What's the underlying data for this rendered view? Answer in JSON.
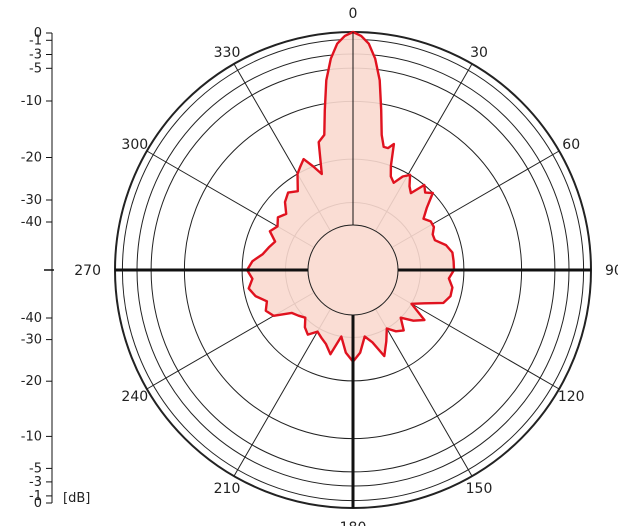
{
  "colors": {
    "pattern_line": "#e0121f",
    "pattern_fill": "#f9d9cf",
    "grid": "#222222",
    "axes": "#111111",
    "text": "#222222"
  },
  "chart_data": {
    "type": "polar",
    "title": "",
    "radial_unit": "[dB]",
    "radial_scale_labels_top": [
      "0",
      "-1",
      "-3",
      "-5",
      "-10",
      "-20",
      "-30",
      "-40"
    ],
    "radial_scale_labels_bottom": [
      "-40",
      "-30",
      "-20",
      "-10",
      "-5",
      "-3",
      "-1",
      "0"
    ],
    "angle_labels": [
      {
        "deg": 0,
        "text": "0"
      },
      {
        "deg": 30,
        "text": "30"
      },
      {
        "deg": 60,
        "text": "60"
      },
      {
        "deg": 90,
        "text": "90"
      },
      {
        "deg": 120,
        "text": "120"
      },
      {
        "deg": 150,
        "text": "150"
      },
      {
        "deg": 180,
        "text": "180"
      },
      {
        "deg": 210,
        "text": "210"
      },
      {
        "deg": 240,
        "text": "240"
      },
      {
        "deg": 270,
        "text": "270"
      },
      {
        "deg": 300,
        "text": "300"
      },
      {
        "deg": 330,
        "text": "330"
      }
    ],
    "ring_levels_db": [
      0,
      -1,
      -3,
      -5,
      -10,
      -20,
      -30,
      -40
    ],
    "grid": true,
    "series": [
      {
        "angles_deg": [
          0,
          2,
          4,
          6,
          8,
          10,
          12,
          14,
          16,
          18,
          20,
          22,
          25,
          28,
          31,
          34,
          37,
          40,
          43,
          46,
          50,
          54,
          58,
          62,
          66,
          70,
          75,
          80,
          85,
          90,
          95,
          100,
          105,
          110,
          115,
          120,
          125,
          130,
          135,
          140,
          145,
          150,
          155,
          160,
          165,
          170,
          175,
          180,
          185,
          190,
          195,
          200,
          205,
          210,
          215,
          220,
          225,
          230,
          235,
          240,
          245,
          250,
          255,
          260,
          265,
          270,
          275,
          280,
          285,
          290,
          295,
          300,
          305,
          310,
          315,
          320,
          325,
          330,
          333,
          336,
          339,
          342,
          345,
          348,
          350,
          352,
          354,
          356,
          358,
          360
        ],
        "gain_db": [
          0,
          -0.5,
          -1.5,
          -3.5,
          -6.5,
          -11,
          -15,
          -17,
          -17,
          -16,
          -20,
          -22,
          -23,
          -21,
          -20,
          -22,
          -23,
          -20,
          -21,
          -20,
          -23,
          -25,
          -24,
          -24,
          -25,
          -25,
          -23,
          -22,
          -22,
          -22,
          -23,
          -22,
          -22,
          -23,
          -27,
          -30,
          -25,
          -27,
          -30,
          -27,
          -28,
          -30,
          -27,
          -24,
          -28,
          -30,
          -26,
          -24,
          -26,
          -30,
          -25,
          -27,
          -28,
          -29,
          -27,
          -28,
          -30,
          -29,
          -28,
          -24,
          -23,
          -24,
          -22,
          -21,
          -22,
          -21,
          -22,
          -24,
          -25,
          -26,
          -24,
          -25,
          -24,
          -25,
          -23,
          -22,
          -23,
          -20,
          -19,
          -18,
          -20,
          -22,
          -16,
          -15,
          -11,
          -6.5,
          -3.5,
          -1.5,
          -0.5,
          0
        ]
      }
    ]
  }
}
